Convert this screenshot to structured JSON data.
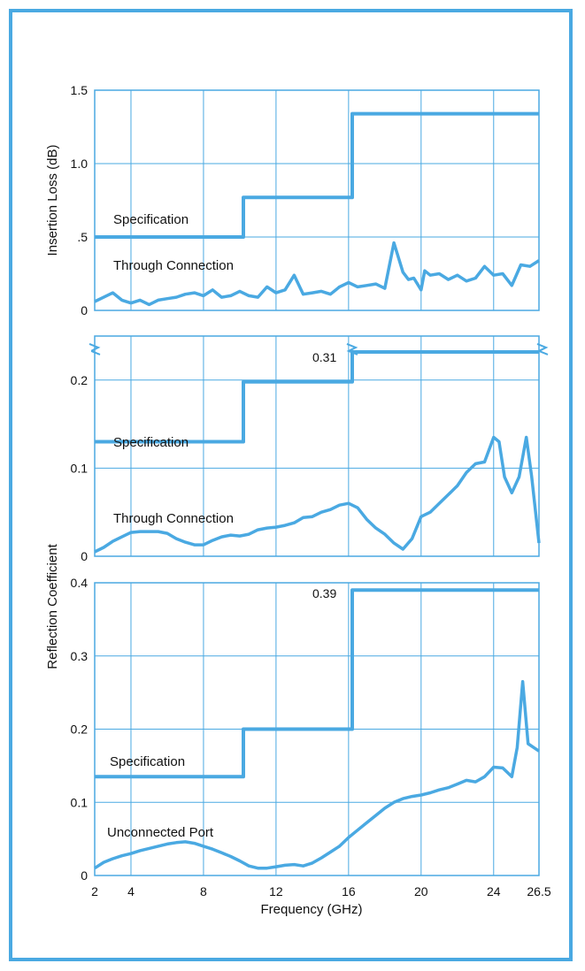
{
  "chart_data": [
    {
      "type": "line",
      "ylabel": "Insertion Loss (dB)",
      "xlim": [
        2,
        26.5
      ],
      "ylim": [
        0,
        1.5
      ],
      "y_ticks": [
        0,
        0.5,
        1.0,
        1.5
      ],
      "y_tick_labels": [
        "0",
        ".5",
        "1.0",
        "1.5"
      ],
      "x_ticks": [
        2,
        4,
        8,
        12,
        16,
        20,
        24,
        26.5
      ],
      "grid": true,
      "series": [
        {
          "name": "Specification",
          "x": [
            2,
            10.2,
            10.2,
            16.2,
            16.2,
            26.5
          ],
          "y": [
            0.5,
            0.5,
            0.77,
            0.77,
            1.34,
            1.34
          ]
        },
        {
          "name": "Through Connection",
          "x": [
            2,
            2.5,
            3,
            3.5,
            4,
            4.5,
            5,
            5.5,
            6,
            6.5,
            7,
            7.5,
            8,
            8.5,
            9,
            9.5,
            10,
            10.5,
            11,
            11.5,
            12,
            12.5,
            13,
            13.5,
            14,
            14.5,
            15,
            15.5,
            16,
            16.5,
            17,
            17.5,
            18,
            18.5,
            19,
            19.3,
            19.6,
            20,
            20.2,
            20.5,
            21,
            21.5,
            22,
            22.5,
            23,
            23.5,
            24,
            24.5,
            25,
            25.5,
            26,
            26.5
          ],
          "y": [
            0.06,
            0.09,
            0.12,
            0.07,
            0.05,
            0.07,
            0.04,
            0.07,
            0.08,
            0.09,
            0.11,
            0.12,
            0.1,
            0.14,
            0.09,
            0.1,
            0.13,
            0.1,
            0.09,
            0.16,
            0.12,
            0.14,
            0.24,
            0.11,
            0.12,
            0.13,
            0.11,
            0.16,
            0.19,
            0.16,
            0.17,
            0.18,
            0.15,
            0.46,
            0.26,
            0.21,
            0.22,
            0.14,
            0.27,
            0.24,
            0.25,
            0.21,
            0.24,
            0.2,
            0.22,
            0.3,
            0.24,
            0.25,
            0.17,
            0.31,
            0.3,
            0.34
          ]
        }
      ],
      "annotations": [
        "Specification",
        "Through Connection"
      ]
    },
    {
      "type": "line",
      "ylabel": "Reflection Coefficient",
      "xlim": [
        2,
        26.5
      ],
      "ylim": [
        0,
        0.25
      ],
      "axis_break": true,
      "y_ticks": [
        0,
        0.1,
        0.2
      ],
      "y_tick_labels": [
        "0",
        "0.1",
        "0.2"
      ],
      "x_ticks": [
        2,
        4,
        8,
        12,
        16,
        20,
        24,
        26.5
      ],
      "grid": true,
      "series": [
        {
          "name": "Specification",
          "x": [
            2,
            10.2,
            10.2,
            16.2,
            16.2,
            26.5
          ],
          "y": [
            0.13,
            0.13,
            0.198,
            0.198,
            0.31,
            0.31
          ],
          "value_label": "0.31"
        },
        {
          "name": "Through Connection",
          "x": [
            2,
            2.5,
            3,
            3.5,
            4,
            4.5,
            5,
            5.5,
            6,
            6.5,
            7,
            7.5,
            8,
            8.5,
            9,
            9.5,
            10,
            10.5,
            11,
            11.5,
            12,
            12.5,
            13,
            13.5,
            14,
            14.5,
            15,
            15.5,
            16,
            16.5,
            17,
            17.5,
            18,
            18.5,
            19,
            19.5,
            20,
            20.5,
            21,
            21.5,
            22,
            22.5,
            23,
            23.5,
            24,
            24.3,
            24.6,
            25,
            25.4,
            25.8,
            26.1,
            26.5
          ],
          "y": [
            0.005,
            0.01,
            0.017,
            0.022,
            0.027,
            0.028,
            0.028,
            0.028,
            0.026,
            0.02,
            0.016,
            0.013,
            0.013,
            0.018,
            0.022,
            0.024,
            0.023,
            0.025,
            0.03,
            0.032,
            0.033,
            0.035,
            0.038,
            0.044,
            0.045,
            0.05,
            0.053,
            0.058,
            0.06,
            0.055,
            0.042,
            0.032,
            0.025,
            0.015,
            0.008,
            0.02,
            0.045,
            0.05,
            0.06,
            0.07,
            0.08,
            0.095,
            0.105,
            0.107,
            0.135,
            0.13,
            0.09,
            0.072,
            0.09,
            0.135,
            0.09,
            0.015
          ]
        }
      ],
      "annotations": [
        "0.31",
        "Specification",
        "Through Connection"
      ]
    },
    {
      "type": "line",
      "xlabel": "Frequency (GHz)",
      "ylabel": "Reflection Coefficient",
      "xlim": [
        2,
        26.5
      ],
      "ylim": [
        0,
        0.4
      ],
      "y_ticks": [
        0,
        0.1,
        0.2,
        0.3,
        0.4
      ],
      "y_tick_labels": [
        "0",
        "0.1",
        "0.2",
        "0.3",
        "0.4"
      ],
      "x_ticks": [
        2,
        4,
        8,
        12,
        16,
        20,
        24,
        26.5
      ],
      "x_tick_labels": [
        "2",
        "4",
        "8",
        "12",
        "16",
        "20",
        "24",
        "26.5"
      ],
      "grid": true,
      "series": [
        {
          "name": "Specification",
          "x": [
            2,
            10.2,
            10.2,
            16.2,
            16.2,
            26.5
          ],
          "y": [
            0.135,
            0.135,
            0.2,
            0.2,
            0.39,
            0.39
          ],
          "value_label": "0.39"
        },
        {
          "name": "Unconnected Port",
          "x": [
            2,
            2.5,
            3,
            3.5,
            4,
            4.5,
            5,
            5.5,
            6,
            6.5,
            7,
            7.5,
            8,
            8.5,
            9,
            9.5,
            10,
            10.5,
            11,
            11.5,
            12,
            12.5,
            13,
            13.5,
            14,
            14.5,
            15,
            15.5,
            16,
            16.5,
            17,
            17.5,
            18,
            18.5,
            19,
            19.5,
            20,
            20.5,
            21,
            21.5,
            22,
            22.5,
            23,
            23.5,
            24,
            24.5,
            25,
            25.3,
            25.6,
            25.9,
            26.2,
            26.5
          ],
          "y": [
            0.01,
            0.018,
            0.023,
            0.027,
            0.03,
            0.034,
            0.037,
            0.04,
            0.043,
            0.045,
            0.046,
            0.044,
            0.04,
            0.036,
            0.031,
            0.026,
            0.02,
            0.013,
            0.01,
            0.01,
            0.012,
            0.014,
            0.015,
            0.013,
            0.017,
            0.024,
            0.032,
            0.04,
            0.052,
            0.062,
            0.072,
            0.082,
            0.092,
            0.1,
            0.105,
            0.108,
            0.11,
            0.113,
            0.117,
            0.12,
            0.125,
            0.13,
            0.128,
            0.135,
            0.148,
            0.147,
            0.135,
            0.175,
            0.265,
            0.18,
            0.175,
            0.17
          ]
        }
      ],
      "annotations": [
        "0.39",
        "Specification",
        "Unconnected Port"
      ]
    }
  ],
  "colors": {
    "line": "#4aa9e2",
    "grid": "#4aa9e2",
    "frame": "#4aa9e2"
  }
}
